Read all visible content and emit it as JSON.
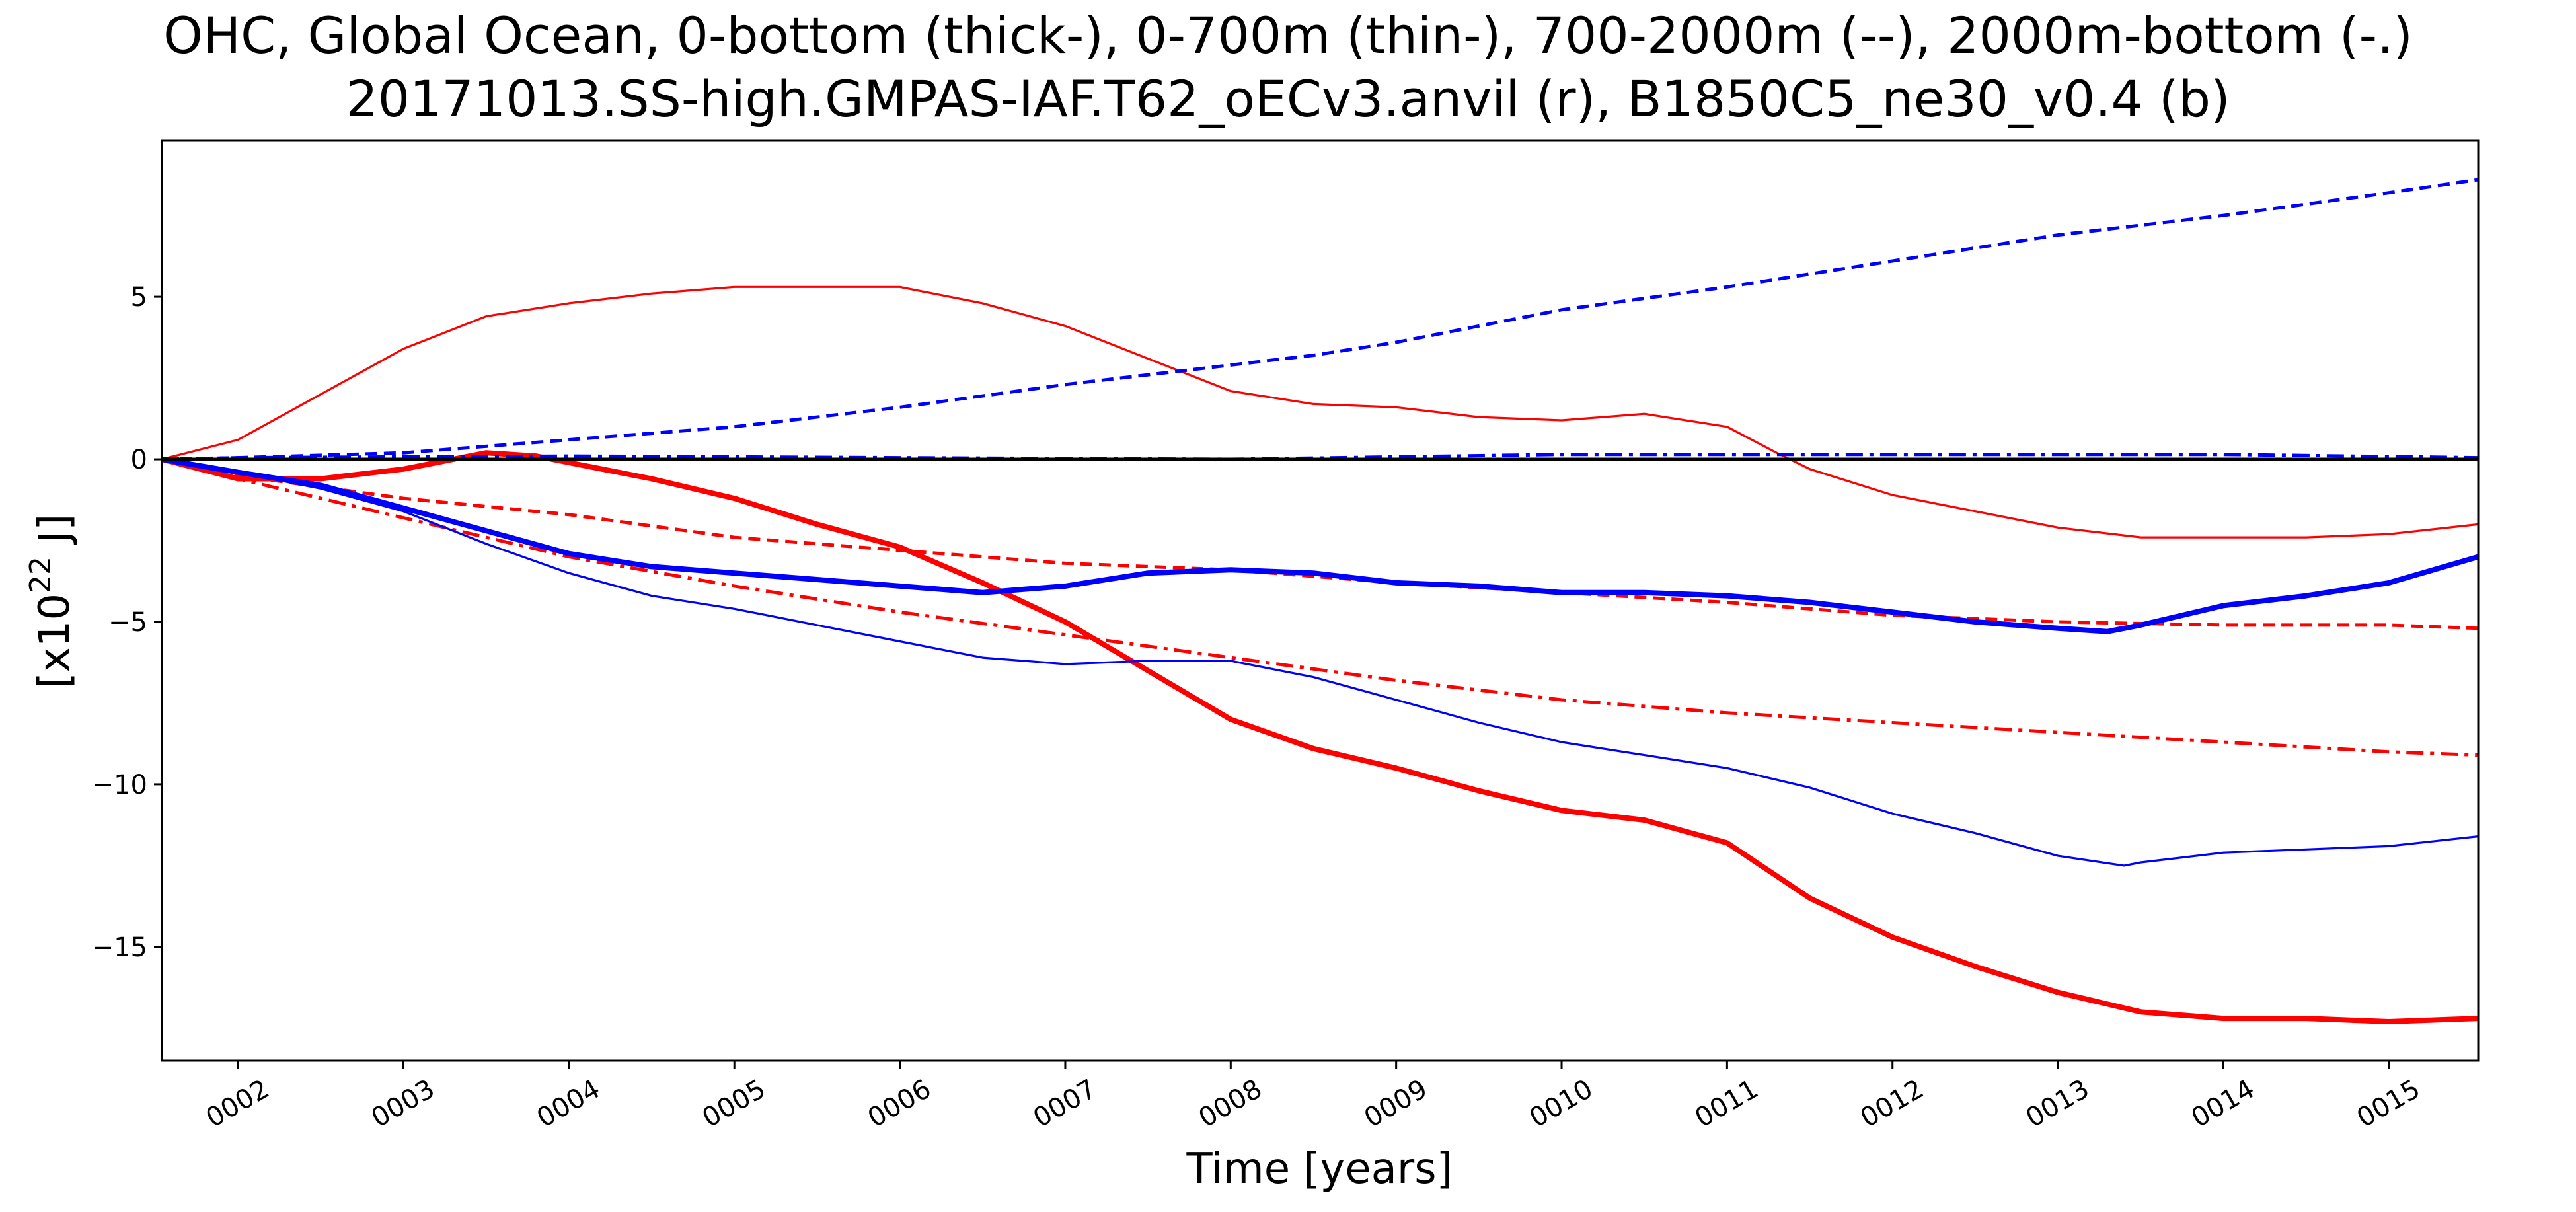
{
  "chart_data": {
    "type": "line",
    "title": "OHC, Global Ocean, 0-bottom (thick-), 0-700m (thin-), 700-2000m (--), 2000m-bottom (-.)",
    "subtitle": "20171013.SS-high.GMPAS-IAF.T62_oECv3.anvil (r), B1850C5_ne30_v0.4 (b)",
    "xlabel": "Time [years]",
    "ylabel": "[x10",
    "ylabel_sup": "22",
    "ylabel_unit": " J]",
    "xlim": [
      1.54,
      15.54
    ],
    "ylim": [
      -18.5,
      9.8
    ],
    "x_ticks": [
      2,
      3,
      4,
      5,
      6,
      7,
      8,
      9,
      10,
      11,
      12,
      13,
      14,
      15
    ],
    "x_tick_labels": [
      "0002",
      "0003",
      "0004",
      "0005",
      "0006",
      "0007",
      "0008",
      "0009",
      "0010",
      "0011",
      "0012",
      "0013",
      "0014",
      "0015"
    ],
    "y_ticks": [
      5,
      0,
      -5,
      -10,
      -15
    ],
    "y_tick_labels": [
      "5",
      "0",
      "−5",
      "−10",
      "−15"
    ],
    "grid": false,
    "legend": "none",
    "colors": {
      "red": "#ff0000",
      "blue": "#0000ff",
      "zero_line": "#000000"
    },
    "series": [
      {
        "color": "#ff0000",
        "style": "solid",
        "weight": "thick",
        "x": [
          1.54,
          2.0,
          2.5,
          3.0,
          3.5,
          3.8,
          4.0,
          4.5,
          5.0,
          5.5,
          6.0,
          6.5,
          7.0,
          7.5,
          8.0,
          8.5,
          9.0,
          9.5,
          10.0,
          10.5,
          11.0,
          11.5,
          12.0,
          12.5,
          13.0,
          13.5,
          14.0,
          14.5,
          15.0,
          15.54
        ],
        "y": [
          0.0,
          -0.6,
          -0.6,
          -0.3,
          0.2,
          0.1,
          -0.1,
          -0.6,
          -1.2,
          -2.0,
          -2.7,
          -3.8,
          -5.0,
          -6.5,
          -8.0,
          -8.9,
          -9.5,
          -10.2,
          -10.8,
          -11.1,
          -11.8,
          -13.5,
          -14.7,
          -15.6,
          -16.4,
          -17.0,
          -17.2,
          -17.2,
          -17.3,
          -17.2
        ]
      },
      {
        "color": "#ff0000",
        "style": "solid",
        "weight": "thin",
        "x": [
          1.54,
          2.0,
          2.5,
          3.0,
          3.5,
          4.0,
          4.5,
          5.0,
          5.5,
          6.0,
          6.5,
          7.0,
          7.5,
          8.0,
          8.5,
          9.0,
          9.5,
          10.0,
          10.5,
          11.0,
          11.3,
          11.5,
          12.0,
          12.5,
          13.0,
          13.5,
          14.0,
          14.5,
          15.0,
          15.54
        ],
        "y": [
          0.0,
          0.6,
          2.0,
          3.4,
          4.4,
          4.8,
          5.1,
          5.3,
          5.3,
          5.3,
          4.8,
          4.1,
          3.1,
          2.1,
          1.7,
          1.6,
          1.3,
          1.2,
          1.4,
          1.0,
          0.2,
          -0.3,
          -1.1,
          -1.6,
          -2.1,
          -2.4,
          -2.4,
          -2.4,
          -2.3,
          -2.0
        ]
      },
      {
        "color": "#ff0000",
        "style": "dashed",
        "weight": "normal",
        "x": [
          1.54,
          2.0,
          3.0,
          4.0,
          5.0,
          6.0,
          7.0,
          8.0,
          9.0,
          10.0,
          11.0,
          12.0,
          13.0,
          14.0,
          15.0,
          15.54
        ],
        "y": [
          0.0,
          -0.5,
          -1.2,
          -1.7,
          -2.4,
          -2.8,
          -3.2,
          -3.4,
          -3.8,
          -4.1,
          -4.4,
          -4.8,
          -5.0,
          -5.1,
          -5.1,
          -5.2
        ]
      },
      {
        "color": "#ff0000",
        "style": "dashdot",
        "weight": "normal",
        "x": [
          1.54,
          2.0,
          3.0,
          4.0,
          5.0,
          6.0,
          7.0,
          8.0,
          9.0,
          10.0,
          11.0,
          12.0,
          13.0,
          14.0,
          15.0,
          15.54
        ],
        "y": [
          0.0,
          -0.6,
          -1.8,
          -3.0,
          -3.9,
          -4.7,
          -5.4,
          -6.1,
          -6.8,
          -7.4,
          -7.8,
          -8.1,
          -8.4,
          -8.7,
          -9.0,
          -9.1
        ]
      },
      {
        "color": "#0000ff",
        "style": "solid",
        "weight": "thick",
        "x": [
          1.54,
          2.0,
          2.5,
          3.0,
          3.5,
          4.0,
          4.5,
          5.0,
          5.5,
          6.0,
          6.5,
          7.0,
          7.5,
          8.0,
          8.5,
          9.0,
          9.5,
          10.0,
          10.5,
          11.0,
          11.5,
          12.0,
          12.5,
          13.0,
          13.3,
          13.5,
          14.0,
          14.5,
          15.0,
          15.54
        ],
        "y": [
          0.0,
          -0.4,
          -0.8,
          -1.5,
          -2.2,
          -2.9,
          -3.3,
          -3.5,
          -3.7,
          -3.9,
          -4.1,
          -3.9,
          -3.5,
          -3.4,
          -3.5,
          -3.8,
          -3.9,
          -4.1,
          -4.1,
          -4.2,
          -4.4,
          -4.7,
          -5.0,
          -5.2,
          -5.3,
          -5.1,
          -4.5,
          -4.2,
          -3.8,
          -3.0
        ]
      },
      {
        "color": "#0000ff",
        "style": "solid",
        "weight": "thin",
        "x": [
          1.54,
          2.0,
          2.5,
          3.0,
          3.5,
          4.0,
          4.5,
          5.0,
          5.5,
          6.0,
          6.5,
          7.0,
          7.5,
          8.0,
          8.5,
          9.0,
          9.5,
          10.0,
          10.5,
          11.0,
          11.5,
          12.0,
          12.5,
          13.0,
          13.4,
          13.5,
          14.0,
          14.5,
          15.0,
          15.54
        ],
        "y": [
          0.0,
          -0.4,
          -0.9,
          -1.6,
          -2.6,
          -3.5,
          -4.2,
          -4.6,
          -5.1,
          -5.6,
          -6.1,
          -6.3,
          -6.2,
          -6.2,
          -6.7,
          -7.4,
          -8.1,
          -8.7,
          -9.1,
          -9.5,
          -10.1,
          -10.9,
          -11.5,
          -12.2,
          -12.5,
          -12.4,
          -12.1,
          -12.0,
          -11.9,
          -11.6
        ]
      },
      {
        "color": "#0000ff",
        "style": "dashed",
        "weight": "normal",
        "x": [
          1.54,
          2.0,
          3.0,
          4.0,
          5.0,
          6.0,
          7.0,
          8.0,
          8.5,
          9.0,
          10.0,
          11.0,
          12.0,
          13.0,
          14.0,
          15.0,
          15.54
        ],
        "y": [
          0.0,
          0.05,
          0.2,
          0.6,
          1.0,
          1.6,
          2.3,
          2.9,
          3.2,
          3.6,
          4.6,
          5.3,
          6.1,
          6.9,
          7.5,
          8.2,
          8.6
        ]
      },
      {
        "color": "#0000ff",
        "style": "dashdot",
        "weight": "normal",
        "x": [
          1.54,
          2.0,
          4.0,
          6.0,
          8.0,
          10.0,
          12.0,
          14.0,
          15.54
        ],
        "y": [
          0.0,
          0.05,
          0.1,
          0.05,
          0.0,
          0.15,
          0.15,
          0.15,
          0.05
        ]
      },
      {
        "color": "#000000",
        "style": "solid",
        "weight": "normal",
        "x": [
          1.54,
          15.54
        ],
        "y": [
          0.0,
          0.0
        ]
      }
    ]
  }
}
